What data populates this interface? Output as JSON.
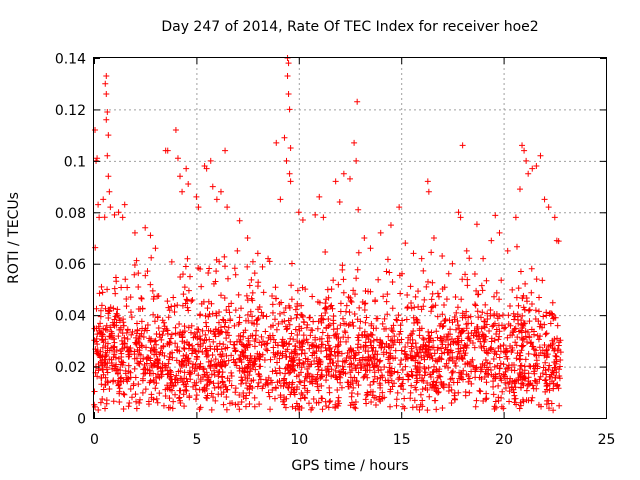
{
  "chart_data": {
    "type": "scatter",
    "title": "Day 247 of 2014, Rate Of TEC Index for receiver hoe2",
    "xlabel": "GPS time / hours",
    "ylabel": "ROTI / TECUs",
    "xlim": [
      0,
      25
    ],
    "ylim": [
      0,
      0.14
    ],
    "x_ticks": [
      "0",
      "5",
      "10",
      "15",
      "20",
      "25"
    ],
    "y_ticks": [
      "0",
      "0.02",
      "0.04",
      "0.06",
      "0.08",
      "0.1",
      "0.12",
      "0.14"
    ],
    "grid": true,
    "marker": "+",
    "color": "#ff0000",
    "x_range_of_data": [
      0,
      22.8
    ],
    "approx_median_value": 0.02,
    "series": [
      {
        "points": [
          [
            0.05,
            0.112
          ],
          [
            0.1,
            0.1
          ],
          [
            0.15,
            0.101
          ],
          [
            0.2,
            0.083
          ],
          [
            0.25,
            0.078
          ],
          [
            0.45,
            0.085
          ],
          [
            0.55,
            0.13
          ],
          [
            0.6,
            0.133
          ],
          [
            0.6,
            0.126
          ],
          [
            0.65,
            0.119
          ],
          [
            0.6,
            0.116
          ],
          [
            0.7,
            0.11
          ],
          [
            0.65,
            0.102
          ],
          [
            0.7,
            0.094
          ],
          [
            0.75,
            0.088
          ],
          [
            0.8,
            0.082
          ],
          [
            1.0,
            0.079
          ],
          [
            1.2,
            0.08
          ],
          [
            1.4,
            0.078
          ],
          [
            1.5,
            0.083
          ],
          [
            2.0,
            0.072
          ],
          [
            2.5,
            0.074
          ],
          [
            3.0,
            0.066
          ],
          [
            3.5,
            0.104
          ],
          [
            3.6,
            0.104
          ],
          [
            4.0,
            0.112
          ],
          [
            4.1,
            0.101
          ],
          [
            4.2,
            0.094
          ],
          [
            4.3,
            0.088
          ],
          [
            4.5,
            0.097
          ],
          [
            4.6,
            0.091
          ],
          [
            5.0,
            0.086
          ],
          [
            5.1,
            0.082
          ],
          [
            5.4,
            0.098
          ],
          [
            5.5,
            0.097
          ],
          [
            5.7,
            0.1
          ],
          [
            5.8,
            0.09
          ],
          [
            6.0,
            0.085
          ],
          [
            6.2,
            0.088
          ],
          [
            6.4,
            0.104
          ],
          [
            6.5,
            0.082
          ],
          [
            7.0,
            0.065
          ],
          [
            7.5,
            0.07
          ],
          [
            8.0,
            0.064
          ],
          [
            8.5,
            0.062
          ],
          [
            8.9,
            0.107
          ],
          [
            9.1,
            0.085
          ],
          [
            9.3,
            0.109
          ],
          [
            9.4,
            0.1
          ],
          [
            9.45,
            0.14
          ],
          [
            9.5,
            0.138
          ],
          [
            9.45,
            0.133
          ],
          [
            9.5,
            0.126
          ],
          [
            9.55,
            0.12
          ],
          [
            9.6,
            0.105
          ],
          [
            9.55,
            0.095
          ],
          [
            9.6,
            0.092
          ],
          [
            10.0,
            0.08
          ],
          [
            10.2,
            0.077
          ],
          [
            10.8,
            0.079
          ],
          [
            11.0,
            0.086
          ],
          [
            11.2,
            0.078
          ],
          [
            11.8,
            0.092
          ],
          [
            12.0,
            0.084
          ],
          [
            12.2,
            0.095
          ],
          [
            12.5,
            0.093
          ],
          [
            12.7,
            0.107
          ],
          [
            12.8,
            0.1
          ],
          [
            12.85,
            0.123
          ],
          [
            12.9,
            0.081
          ],
          [
            13.2,
            0.07
          ],
          [
            13.5,
            0.066
          ],
          [
            14.0,
            0.072
          ],
          [
            14.5,
            0.075
          ],
          [
            14.9,
            0.082
          ],
          [
            15.2,
            0.068
          ],
          [
            15.6,
            0.064
          ],
          [
            16.0,
            0.062
          ],
          [
            16.3,
            0.092
          ],
          [
            16.35,
            0.088
          ],
          [
            16.6,
            0.07
          ],
          [
            17.0,
            0.063
          ],
          [
            17.5,
            0.06
          ],
          [
            17.8,
            0.08
          ],
          [
            17.9,
            0.078
          ],
          [
            18.0,
            0.106
          ],
          [
            18.2,
            0.065
          ],
          [
            18.6,
            0.056
          ],
          [
            19.0,
            0.062
          ],
          [
            19.4,
            0.069
          ],
          [
            19.8,
            0.072
          ],
          [
            20.2,
            0.065
          ],
          [
            20.6,
            0.078
          ],
          [
            20.8,
            0.089
          ],
          [
            20.9,
            0.106
          ],
          [
            21.0,
            0.104
          ],
          [
            21.1,
            0.1
          ],
          [
            21.2,
            0.095
          ],
          [
            21.4,
            0.097
          ],
          [
            21.6,
            0.098
          ],
          [
            21.8,
            0.102
          ],
          [
            22.0,
            0.085
          ],
          [
            22.2,
            0.082
          ],
          [
            22.5,
            0.078
          ],
          [
            22.6,
            0.069
          ]
        ]
      }
    ]
  }
}
